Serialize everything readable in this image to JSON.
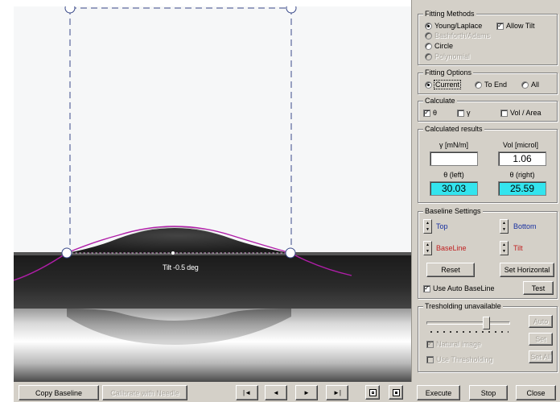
{
  "viewer": {
    "tilt_label": "Tilt -0.5 deg"
  },
  "toolbar": {
    "copy_baseline": "Copy Baseline",
    "copy_baseline_ul": "B",
    "calibrate": "Calibrate with Needle",
    "nav_first": "|◄",
    "nav_prev": "◄",
    "nav_next": "►",
    "nav_last": "►|",
    "execute": "Execute",
    "execute_ul": "x",
    "stop": "Stop",
    "stop_ul": "S",
    "close": "Close",
    "close_ul": "C"
  },
  "fitting_methods": {
    "title": "Fitting Methods",
    "young_laplace": "Young/Laplace",
    "allow_tilt": "Allow Tilt",
    "bashforth": "Bashforth/Adams",
    "circle": "Circle",
    "polynomial": "Polynomial"
  },
  "fitting_options": {
    "title": "Fitting Options",
    "current": "Current",
    "to_end": "To End",
    "all": "All"
  },
  "calculate": {
    "title": "Calculate",
    "theta": "θ",
    "gamma": "γ",
    "vol_area": "Vol / Area"
  },
  "results": {
    "title": "Calculated results",
    "gamma_label": "γ [mN/m]",
    "gamma_value": "",
    "vol_label": "Vol [microl]",
    "vol_value": "1.06",
    "theta_left_label": "θ  (left)",
    "theta_left_value": "30.03",
    "theta_right_label": "θ  (right)",
    "theta_right_value": "25.59"
  },
  "baseline": {
    "title": "Baseline Settings",
    "top": "Top",
    "bottom": "Bottom",
    "baseline": "BaseLine",
    "tilt": "Tilt",
    "reset": "Reset",
    "reset_ul": "R",
    "set_horizontal": "Set Horizontal",
    "set_horizontal_ul": "H",
    "use_auto": "Use Auto BaseLine",
    "test": "Test",
    "test_ul": "T"
  },
  "threshold": {
    "title": "Tresholding unavailable",
    "auto": "Auto",
    "set": "Set",
    "set_all": "Set All",
    "natural_image": "Natural image",
    "use_thresholding": "Use Thresholding"
  },
  "colors": {
    "panel": "#d4d0c8",
    "fit_curve": "#b01ea8",
    "result_cyan": "#33e4ee",
    "red_label": "#c02020",
    "blue_label": "#1830a0"
  }
}
